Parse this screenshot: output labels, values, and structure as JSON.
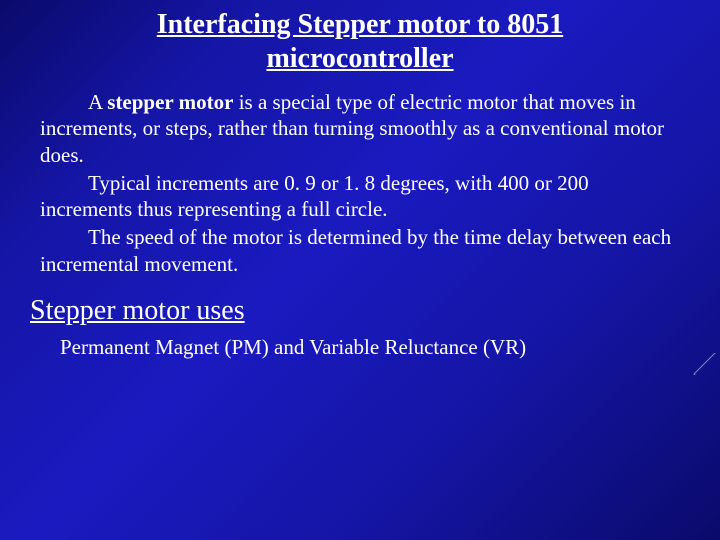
{
  "slide": {
    "background_gradient": [
      "#0a0a6b",
      "#1515a5",
      "#1a1ac0",
      "#1515a5",
      "#0a0a6b"
    ],
    "text_color": "#ffffff",
    "title_fontsize": 28,
    "body_fontsize": 21,
    "font_family": "Times New Roman",
    "title": "Interfacing Stepper motor to 8051 microcontroller",
    "para1_lead": "A ",
    "para1_bold": "stepper motor",
    "para1_rest": " is a special type of electric motor that moves in  increments, or steps, rather than turning smoothly as a conventional motor  does.",
    "para2": "Typical increments are 0. 9 or 1. 8 degrees, with 400 or 200 increments thus representing a full circle.",
    "para3": "The speed of the motor is determined by the time delay between each incremental movement.",
    "subtitle": "Stepper motor uses",
    "subbody": "Permanent Magnet (PM) and Variable Reluctance (VR)"
  }
}
